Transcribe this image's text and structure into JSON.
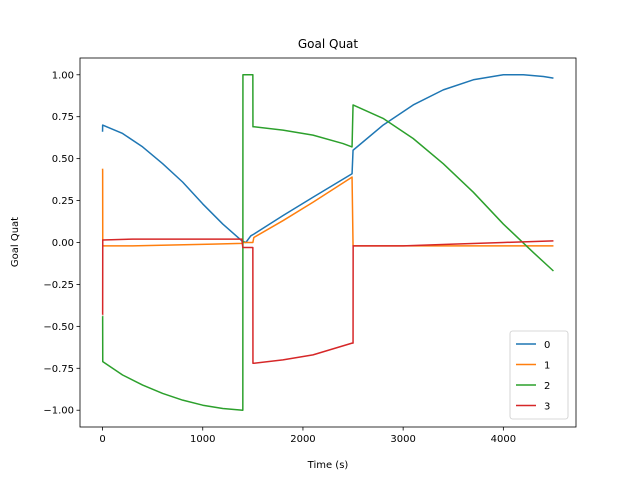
{
  "chart_data": {
    "type": "line",
    "title": "Goal Quat",
    "xlabel": "Time (s)",
    "ylabel": "Goal Quat",
    "xlim": [
      -225,
      4725
    ],
    "ylim": [
      -1.1,
      1.1
    ],
    "xticks": [
      0,
      1000,
      2000,
      3000,
      4000
    ],
    "xtick_labels": [
      "0",
      "1000",
      "2000",
      "3000",
      "4000"
    ],
    "yticks": [
      -1.0,
      -0.75,
      -0.5,
      -0.25,
      0.0,
      0.25,
      0.5,
      0.75,
      1.0
    ],
    "ytick_labels": [
      "−1.00",
      "−0.75",
      "−0.50",
      "−0.25",
      "0.00",
      "0.25",
      "0.50",
      "0.75",
      "1.00"
    ],
    "grid": false,
    "legend_position": "lower-right",
    "series": [
      {
        "name": "0",
        "color": "#1f77b4",
        "x": [
          0,
          1,
          200,
          400,
          600,
          800,
          1000,
          1200,
          1390,
          1430,
          1480,
          1510,
          1800,
          2100,
          2490,
          2500,
          2800,
          3100,
          3400,
          3700,
          4000,
          4200,
          4400,
          4500
        ],
        "y": [
          0.66,
          0.7,
          0.65,
          0.57,
          0.47,
          0.36,
          0.23,
          0.11,
          0.01,
          0.0,
          0.04,
          0.05,
          0.16,
          0.27,
          0.41,
          0.55,
          0.7,
          0.82,
          0.91,
          0.97,
          1.0,
          1.0,
          0.99,
          0.98
        ]
      },
      {
        "name": "1",
        "color": "#ff7f0e",
        "x": [
          0,
          1,
          2,
          300,
          700,
          1100,
          1390,
          1400,
          1500,
          1510,
          1800,
          2100,
          2490,
          2500,
          3000,
          3500,
          4000,
          4500
        ],
        "y": [
          0.44,
          0.43,
          -0.02,
          -0.02,
          -0.015,
          -0.01,
          -0.005,
          0.0,
          0.0,
          0.03,
          0.13,
          0.24,
          0.39,
          -0.02,
          -0.02,
          -0.02,
          -0.02,
          -0.02
        ]
      },
      {
        "name": "2",
        "color": "#2ca02c",
        "x": [
          0,
          1,
          2,
          200,
          400,
          600,
          800,
          1000,
          1200,
          1400,
          1401,
          1500,
          1501,
          1510,
          1800,
          2100,
          2400,
          2490,
          2500,
          2800,
          3100,
          3400,
          3700,
          4000,
          4300,
          4500
        ],
        "y": [
          -0.44,
          -0.44,
          -0.71,
          -0.79,
          -0.85,
          -0.9,
          -0.94,
          -0.97,
          -0.99,
          -1.0,
          1.0,
          1.0,
          0.69,
          0.69,
          0.67,
          0.64,
          0.59,
          0.57,
          0.82,
          0.74,
          0.62,
          0.47,
          0.3,
          0.11,
          -0.06,
          -0.17
        ]
      },
      {
        "name": "3",
        "color": "#d62728",
        "x": [
          0,
          1,
          2,
          300,
          700,
          1100,
          1390,
          1400,
          1500,
          1501,
          1510,
          1800,
          2100,
          2490,
          2500,
          2501,
          3000,
          3500,
          4000,
          4500
        ],
        "y": [
          -0.43,
          -0.43,
          0.015,
          0.02,
          0.02,
          0.02,
          0.02,
          -0.03,
          -0.03,
          -0.72,
          -0.72,
          -0.7,
          -0.67,
          -0.6,
          -0.6,
          -0.02,
          -0.02,
          -0.01,
          0.0,
          0.01
        ]
      }
    ]
  }
}
